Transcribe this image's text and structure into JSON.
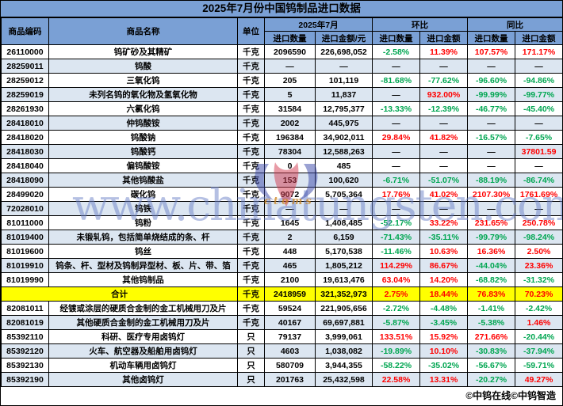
{
  "title": "2025年7月份中国钨制品进口数据",
  "footer": "©中钨在线©中钨智造",
  "colors": {
    "header_bg": "#7AA0D5",
    "alt_row_bg": "#DCE6F1",
    "total_row_bg": "#FFFF00",
    "positive": "#FF0000",
    "negative": "#00A651",
    "border": "#000000",
    "watermark": "#6E83C8"
  },
  "watermark": {
    "text": "www.chinatungsten.com",
    "logo": "chinatungsten-logo",
    "small_text": "ctoms"
  },
  "chart_data": {
    "type": "table",
    "title": "2025年7月份中国钨制品进口数据",
    "headers": {
      "code": "商品编码",
      "name": "商品名称",
      "unit": "单位",
      "group_period": "2025年7月",
      "group_mom": "环比",
      "group_yoy": "同比",
      "qty": "进口数量",
      "amount_yuan": "进口金额/元",
      "amount": "进口金额"
    },
    "rows": [
      {
        "code": "26110000",
        "name": "钨矿砂及其精矿",
        "unit": "千克",
        "qty": "2096590",
        "amount": "226,698,052",
        "mom_qty": "-2.58%",
        "mom_amount": "11.39%",
        "yoy_qty": "107.57%",
        "yoy_amount": "171.17%"
      },
      {
        "code": "28259011",
        "name": "钨酸",
        "unit": "千克",
        "qty": "—",
        "amount": "—",
        "mom_qty": "—",
        "mom_amount": "—",
        "yoy_qty": "—",
        "yoy_amount": "—"
      },
      {
        "code": "28259012",
        "name": "三氧化钨",
        "unit": "千克",
        "qty": "205",
        "amount": "101,119",
        "mom_qty": "-81.68%",
        "mom_amount": "-77.62%",
        "yoy_qty": "-96.60%",
        "yoy_amount": "-94.86%"
      },
      {
        "code": "28259019",
        "name": "未列名钨的氧化物及氢氧化物",
        "unit": "千克",
        "qty": "5",
        "amount": "11,837",
        "mom_qty": "—",
        "mom_amount": "932.00%",
        "yoy_qty": "-99.99%",
        "yoy_amount": "-99.77%"
      },
      {
        "code": "28261930",
        "name": "六氯化钨",
        "unit": "千克",
        "qty": "31584",
        "amount": "12,795,377",
        "mom_qty": "-13.33%",
        "mom_amount": "-12.39%",
        "yoy_qty": "-46.77%",
        "yoy_amount": "-45.40%"
      },
      {
        "code": "28418010",
        "name": "仲钨酸铵",
        "unit": "千克",
        "qty": "2002",
        "amount": "445,975",
        "mom_qty": "—",
        "mom_amount": "—",
        "yoy_qty": "—",
        "yoy_amount": "—"
      },
      {
        "code": "28418020",
        "name": "钨酸钠",
        "unit": "千克",
        "qty": "196384",
        "amount": "34,902,011",
        "mom_qty": "29.84%",
        "mom_amount": "41.82%",
        "yoy_qty": "-16.57%",
        "yoy_amount": "-7.65%"
      },
      {
        "code": "28418030",
        "name": "钨酸钙",
        "unit": "千克",
        "qty": "78304",
        "amount": "12,588,263",
        "mom_qty": "—",
        "mom_amount": "—",
        "yoy_qty": "—",
        "yoy_amount": "37801.59"
      },
      {
        "code": "28418040",
        "name": "偏钨酸铵",
        "unit": "千克",
        "qty": "0",
        "amount": "485",
        "mom_qty": "—",
        "mom_amount": "—",
        "yoy_qty": "—",
        "yoy_amount": "—"
      },
      {
        "code": "28418090",
        "name": "其他钨酸盐",
        "unit": "千克",
        "qty": "153",
        "amount": "100,620",
        "mom_qty": "-6.71%",
        "mom_amount": "-51.07%",
        "yoy_qty": "-88.19%",
        "yoy_amount": "-86.74%"
      },
      {
        "code": "28499020",
        "name": "碳化钨",
        "unit": "千克",
        "qty": "9072",
        "amount": "5,705,364",
        "mom_qty": "17.76%",
        "mom_amount": "41.02%",
        "yoy_qty": "2107.30%",
        "yoy_amount": "1761.69%"
      },
      {
        "code": "72028010",
        "name": "钨铁",
        "unit": "千克",
        "qty": "—",
        "amount": "—",
        "mom_qty": "—",
        "mom_amount": "—",
        "yoy_qty": "—",
        "yoy_amount": "—"
      },
      {
        "code": "81011000",
        "name": "钨粉",
        "unit": "千克",
        "qty": "1645",
        "amount": "1,408,485",
        "mom_qty": "-52.17%",
        "mom_amount": "33.22%",
        "yoy_qty": "231.65%",
        "yoy_amount": "250.78%"
      },
      {
        "code": "81019400",
        "name": "未锻轧钨，包括简单烧结成的条、杆",
        "unit": "千克",
        "qty": "2",
        "amount": "6,159",
        "mom_qty": "-71.43%",
        "mom_amount": "-35.11%",
        "yoy_qty": "-99.79%",
        "yoy_amount": "-98.24%"
      },
      {
        "code": "81019600",
        "name": "钨丝",
        "unit": "千克",
        "qty": "448",
        "amount": "5,170,538",
        "mom_qty": "-11.46%",
        "mom_amount": "10.63%",
        "yoy_qty": "16.36%",
        "yoy_amount": "2.50%"
      },
      {
        "code": "81019910",
        "name": "钨条、杆、型材及钨制异型材、板、片、带、箔",
        "unit": "千克",
        "qty": "465",
        "amount": "1,805,212",
        "mom_qty": "114.29%",
        "mom_amount": "86.67%",
        "yoy_qty": "-44.04%",
        "yoy_amount": "23.36%"
      },
      {
        "code": "81019990",
        "name": "其他钨制品",
        "unit": "千克",
        "qty": "2100",
        "amount": "19,613,476",
        "mom_qty": "63.04%",
        "mom_amount": "14.20%",
        "yoy_qty": "-68.82%",
        "yoy_amount": "-31.32%"
      },
      {
        "is_total": true,
        "code": "",
        "name": "合计",
        "unit": "千克",
        "qty": "2418959",
        "amount": "321,352,973",
        "mom_qty": "2.75%",
        "mom_amount": "18.44%",
        "yoy_qty": "76.83%",
        "yoy_amount": "70.23%"
      },
      {
        "code": "82081011",
        "name": "经镀或涂层的硬质合金制的金工机械用刀及片",
        "unit": "千克",
        "qty": "59524",
        "amount": "221,905,656",
        "mom_qty": "-2.72%",
        "mom_amount": "-4.48%",
        "yoy_qty": "-1.41%",
        "yoy_amount": "-2.42%"
      },
      {
        "code": "82081019",
        "name": "其他硬质合金制的金工机械用刀及片",
        "unit": "千克",
        "qty": "40167",
        "amount": "69,697,881",
        "mom_qty": "-5.87%",
        "mom_amount": "-3.45%",
        "yoy_qty": "-5.38%",
        "yoy_amount": "1.46%"
      },
      {
        "code": "85392110",
        "name": "科研、医疗专用卤钨灯",
        "unit": "只",
        "qty": "79137",
        "amount": "3,999,061",
        "mom_qty": "133.51%",
        "mom_amount": "15.92%",
        "yoy_qty": "271.66%",
        "yoy_amount": "-20.44%"
      },
      {
        "code": "85392120",
        "name": "火车、航空器及船舶用卤钨灯",
        "unit": "只",
        "qty": "4603",
        "amount": "1,038,082",
        "mom_qty": "-19.89%",
        "mom_amount": "10.10%",
        "yoy_qty": "-30.83%",
        "yoy_amount": "-37.94%"
      },
      {
        "code": "85392130",
        "name": "机动车辆用卤钨灯",
        "unit": "只",
        "qty": "580709",
        "amount": "3,944,355",
        "mom_qty": "-58.22%",
        "mom_amount": "-35.02%",
        "yoy_qty": "-56.67%",
        "yoy_amount": "-59.71%"
      },
      {
        "code": "85392190",
        "name": "其他卤钨灯",
        "unit": "只",
        "qty": "201763",
        "amount": "25,432,598",
        "mom_qty": "22.58%",
        "mom_amount": "13.31%",
        "yoy_qty": "-20.27%",
        "yoy_amount": "49.27%"
      }
    ]
  }
}
